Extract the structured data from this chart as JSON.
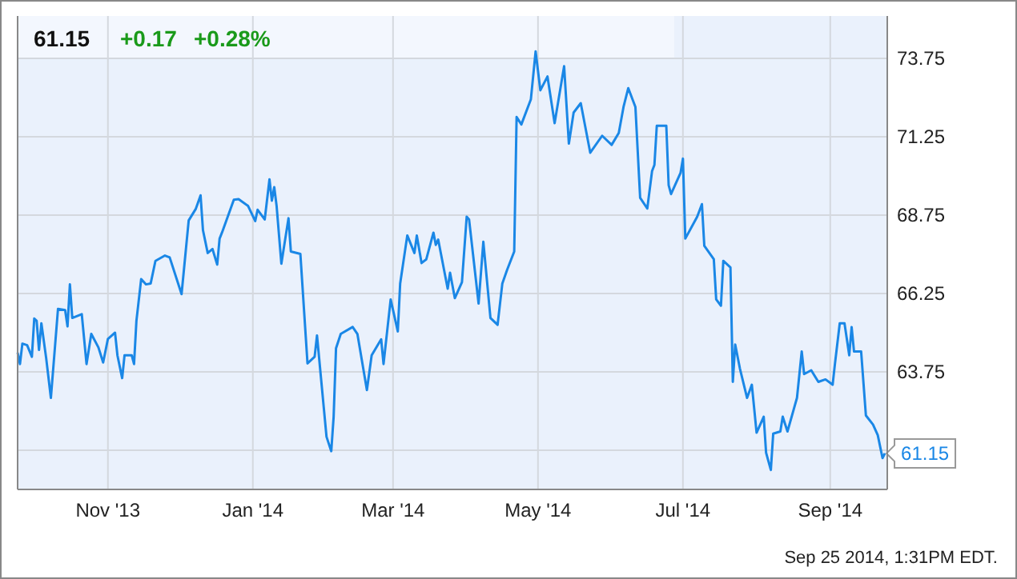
{
  "chart_data": {
    "type": "line",
    "title": "61.15",
    "annotations": [
      "+0.17",
      "+0.28%",
      "Sep 25 2014, 1:31PM EDT."
    ],
    "x": [
      "2013-09-24",
      "2013-09-25",
      "2013-09-26",
      "2013-09-28",
      "2013-09-30",
      "2013-10-01",
      "2013-10-02",
      "2013-10-03",
      "2013-10-04",
      "2013-10-06",
      "2013-10-08",
      "2013-10-11",
      "2013-10-14",
      "2013-10-15",
      "2013-10-16",
      "2013-10-17",
      "2013-10-21",
      "2013-10-23",
      "2013-10-25",
      "2013-10-28",
      "2013-10-30",
      "2013-11-01",
      "2013-11-04",
      "2013-11-05",
      "2013-11-07",
      "2013-11-08",
      "2013-11-11",
      "2013-11-12",
      "2013-11-13",
      "2013-11-15",
      "2013-11-17",
      "2013-11-19",
      "2013-11-21",
      "2013-11-25",
      "2013-11-27",
      "2013-12-02",
      "2013-12-05",
      "2013-12-08",
      "2013-12-10",
      "2013-12-11",
      "2013-12-13",
      "2013-12-15",
      "2013-12-17",
      "2013-12-18",
      "2013-12-19",
      "2013-12-24",
      "2013-12-26",
      "2013-12-30",
      "2014-01-02",
      "2014-01-03",
      "2014-01-06",
      "2014-01-08",
      "2014-01-09",
      "2014-01-10",
      "2014-01-11",
      "2014-01-13",
      "2014-01-16",
      "2014-01-17",
      "2014-01-21",
      "2014-01-24",
      "2014-01-27",
      "2014-01-28",
      "2014-02-01",
      "2014-02-03",
      "2014-02-04",
      "2014-02-05",
      "2014-02-07",
      "2014-02-12",
      "2014-02-14",
      "2014-02-18",
      "2014-02-20",
      "2014-02-24",
      "2014-02-25",
      "2014-02-28",
      "2014-03-03",
      "2014-03-04",
      "2014-03-07",
      "2014-03-10",
      "2014-03-11",
      "2014-03-13",
      "2014-03-15",
      "2014-03-18",
      "2014-03-19",
      "2014-03-20",
      "2014-03-24",
      "2014-03-25",
      "2014-03-27",
      "2014-03-30",
      "2014-04-01",
      "2014-04-02",
      "2014-04-06",
      "2014-04-08",
      "2014-04-11",
      "2014-04-14",
      "2014-04-16",
      "2014-04-18",
      "2014-04-21",
      "2014-04-22",
      "2014-04-24",
      "2014-04-28",
      "2014-04-30",
      "2014-05-02",
      "2014-05-05",
      "2014-05-08",
      "2014-05-12",
      "2014-05-14",
      "2014-05-16",
      "2014-05-19",
      "2014-05-23",
      "2014-05-28",
      "2014-06-01",
      "2014-06-04",
      "2014-06-06",
      "2014-06-08",
      "2014-06-11",
      "2014-06-13",
      "2014-06-16",
      "2014-06-18",
      "2014-06-19",
      "2014-06-20",
      "2014-06-24",
      "2014-06-25",
      "2014-06-26",
      "2014-06-30",
      "2014-07-01",
      "2014-07-02",
      "2014-07-07",
      "2014-07-09",
      "2014-07-10",
      "2014-07-14",
      "2014-07-15",
      "2014-07-17",
      "2014-07-18",
      "2014-07-21",
      "2014-07-22",
      "2014-07-23",
      "2014-07-25",
      "2014-07-28",
      "2014-07-30",
      "2014-08-01",
      "2014-08-04",
      "2014-08-05",
      "2014-08-07",
      "2014-08-08",
      "2014-08-11",
      "2014-08-12",
      "2014-08-14",
      "2014-08-18",
      "2014-08-20",
      "2014-08-21",
      "2014-08-24",
      "2014-08-27",
      "2014-08-30",
      "2014-09-02",
      "2014-09-03",
      "2014-09-05",
      "2014-09-07",
      "2014-09-09",
      "2014-09-10",
      "2014-09-11",
      "2014-09-14",
      "2014-09-16",
      "2014-09-19",
      "2014-09-21",
      "2014-09-23",
      "2014-09-24"
    ],
    "series": [
      {
        "color": "#1a87e6",
        "values": [
          64.36,
          64.0,
          64.65,
          64.6,
          64.23,
          65.45,
          65.38,
          64.45,
          65.3,
          64.2,
          62.92,
          65.76,
          65.72,
          65.2,
          66.54,
          65.47,
          65.59,
          64.0,
          64.96,
          64.53,
          64.05,
          64.8,
          65.0,
          64.28,
          63.55,
          64.28,
          64.28,
          64.0,
          65.38,
          66.71,
          66.54,
          66.57,
          67.29,
          67.46,
          67.4,
          66.23,
          68.58,
          68.95,
          69.38,
          68.27,
          67.54,
          67.67,
          67.17,
          68.0,
          68.19,
          69.24,
          69.26,
          69.04,
          68.56,
          68.92,
          68.61,
          69.89,
          69.21,
          69.64,
          69.04,
          67.2,
          68.65,
          67.59,
          67.51,
          64.02,
          64.23,
          64.91,
          61.68,
          61.22,
          62.32,
          64.5,
          64.96,
          65.18,
          64.96,
          63.17,
          64.28,
          64.79,
          64.0,
          66.06,
          65.04,
          66.57,
          68.1,
          67.54,
          68.1,
          67.22,
          67.34,
          68.19,
          67.8,
          67.97,
          66.4,
          66.91,
          66.1,
          66.61,
          68.7,
          68.61,
          65.93,
          67.9,
          65.47,
          65.25,
          66.57,
          67.0,
          67.59,
          71.88,
          71.64,
          72.44,
          73.97,
          72.73,
          73.17,
          71.68,
          73.5,
          71.03,
          72.02,
          72.32,
          70.74,
          71.28,
          70.99,
          71.37,
          72.2,
          72.8,
          72.2,
          69.3,
          68.96,
          70.15,
          70.35,
          71.6,
          71.6,
          69.7,
          69.42,
          70.1,
          70.55,
          68.0,
          68.7,
          69.1,
          67.77,
          67.34,
          66.06,
          65.86,
          67.29,
          67.08,
          63.43,
          64.62,
          63.85,
          62.92,
          63.34,
          61.81,
          62.32,
          61.17,
          60.62,
          61.78,
          61.85,
          62.32,
          61.85,
          62.92,
          64.4,
          63.68,
          63.8,
          63.43,
          63.51,
          63.34,
          64.02,
          65.3,
          65.3,
          64.28,
          65.18,
          64.4,
          64.4,
          62.36,
          62.07,
          61.73,
          61.0,
          61.15
        ],
        "value_labels": [
          null,
          null,
          null,
          null,
          null,
          null,
          null,
          null,
          null,
          null,
          null,
          null,
          null,
          null,
          null,
          null,
          null,
          null,
          null,
          null,
          null,
          null,
          null,
          null,
          null,
          null,
          null,
          null,
          null,
          null,
          null,
          null,
          null,
          null,
          null,
          null,
          null,
          null,
          null,
          null,
          null,
          null,
          null,
          null,
          null,
          null,
          null,
          null,
          null,
          null,
          null,
          null,
          null,
          null,
          null,
          null,
          null,
          null,
          null,
          null,
          null,
          null,
          null,
          null,
          null,
          null,
          null,
          null,
          null,
          null,
          null,
          null,
          null,
          null,
          null,
          null,
          null,
          null,
          null,
          null,
          null,
          null,
          null,
          null,
          null,
          null,
          null,
          null,
          null,
          null,
          null,
          null,
          null,
          null,
          null,
          null,
          null,
          null,
          null,
          null,
          null,
          null,
          null,
          null,
          null,
          null,
          null,
          null,
          null,
          null,
          null,
          null,
          null,
          null,
          null,
          null,
          null,
          null,
          null,
          null,
          null,
          null,
          null,
          null,
          null,
          null,
          null,
          null,
          null,
          null,
          null,
          null,
          null,
          null,
          null,
          null,
          null,
          null,
          null,
          null,
          null,
          null,
          null,
          null,
          null,
          null,
          null,
          null,
          null,
          null,
          null,
          null,
          null,
          null,
          null,
          null,
          null,
          null,
          null,
          null,
          null,
          null,
          null,
          null,
          null,
          "61.15"
        ]
      }
    ],
    "xlim": [
      "2013-09-24",
      "2014-09-25"
    ],
    "xticks": [
      {
        "value": "2013-11-01",
        "label": "Nov '13"
      },
      {
        "value": "2014-01-01",
        "label": "Jan '14"
      },
      {
        "value": "2014-03-01",
        "label": "Mar '14"
      },
      {
        "value": "2014-05-01",
        "label": "May '14"
      },
      {
        "value": "2014-07-01",
        "label": "Jul '14"
      },
      {
        "value": "2014-09-01",
        "label": "Sep '14"
      }
    ],
    "ylim": [
      60,
      75.1
    ],
    "yticks": [
      {
        "value": 61.25,
        "label": null
      },
      63.75,
      66.25,
      68.75,
      71.25,
      73.75
    ],
    "grid": true,
    "marker": "none",
    "line_style": "solid"
  }
}
